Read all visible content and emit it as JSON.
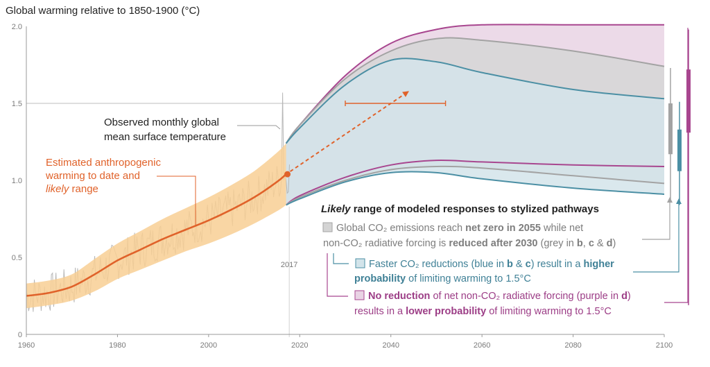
{
  "chart_data": {
    "type": "line",
    "title": "Global warming relative to 1850-1900 (°C)",
    "xlim": [
      1960,
      2100
    ],
    "ylim": [
      0,
      2.0
    ],
    "x_ticks": [
      "1960",
      "1980",
      "2000",
      "2020",
      "2040",
      "2060",
      "2080",
      "2100"
    ],
    "y_ticks": [
      "0",
      "0.5",
      "1.0",
      "1.5",
      "2.0"
    ],
    "grid": "horizontal line at 1.5",
    "marker_label": "2017",
    "observed_label": [
      "Observed monthly global",
      "mean surface temperature"
    ],
    "estimated_label": [
      "Estimated anthropogenic",
      "warming to date and"
    ],
    "estimated_label_italic": "likely",
    "estimated_label_tail": " range",
    "estimated_warming": {
      "x": [
        1960,
        1965,
        1970,
        1975,
        1980,
        1985,
        1990,
        1995,
        2000,
        2005,
        2010,
        2015,
        2017
      ],
      "y": [
        0.25,
        0.27,
        0.31,
        0.39,
        0.48,
        0.55,
        0.62,
        0.68,
        0.74,
        0.81,
        0.89,
        0.99,
        1.04
      ],
      "likely_range_low": [
        0.17,
        0.19,
        0.22,
        0.28,
        0.36,
        0.42,
        0.48,
        0.54,
        0.59,
        0.65,
        0.72,
        0.8,
        0.84
      ],
      "likely_range_high": [
        0.33,
        0.35,
        0.39,
        0.49,
        0.59,
        0.67,
        0.75,
        0.82,
        0.89,
        0.97,
        1.06,
        1.18,
        1.24
      ]
    },
    "observed_monthly": {
      "x_start": 1960,
      "x_end": 2017.9,
      "step_years": 0.25,
      "trend_y_at_1960": 0.25,
      "noise_amplitude": 0.13,
      "y_peak": 1.57,
      "peak_year": 2016.2
    },
    "projection_arrow": {
      "x_from": 2017,
      "y_from": 1.04,
      "x_to": 2044,
      "y_to": 1.58
    },
    "range_bar_1_5": {
      "y": 1.5,
      "x_from": 2030,
      "x_to": 2052
    },
    "pathways": [
      {
        "name": "purple",
        "color": "#a8468f",
        "fill": "#e9d3e4",
        "upper": {
          "x": [
            2017,
            2020,
            2030,
            2040,
            2050,
            2060,
            2080,
            2100
          ],
          "y": [
            1.24,
            1.36,
            1.68,
            1.89,
            1.98,
            2.01,
            2.01,
            2.01
          ]
        },
        "lower": {
          "x": [
            2017,
            2020,
            2030,
            2040,
            2050,
            2060,
            2080,
            2100
          ],
          "y": [
            0.84,
            0.9,
            1.02,
            1.1,
            1.13,
            1.12,
            1.1,
            1.09
          ]
        }
      },
      {
        "name": "grey",
        "color": "#a3a3a3",
        "fill": "#d6d6d6",
        "upper": {
          "x": [
            2017,
            2020,
            2030,
            2040,
            2050,
            2060,
            2080,
            2100
          ],
          "y": [
            1.24,
            1.36,
            1.66,
            1.84,
            1.92,
            1.91,
            1.84,
            1.74
          ]
        },
        "lower": {
          "x": [
            2017,
            2020,
            2030,
            2040,
            2050,
            2060,
            2080,
            2100
          ],
          "y": [
            0.84,
            0.89,
            1.0,
            1.07,
            1.09,
            1.08,
            1.03,
            0.98
          ]
        }
      },
      {
        "name": "blue",
        "color": "#4b8fa4",
        "fill": "#d3e4ea",
        "upper": {
          "x": [
            2017,
            2020,
            2030,
            2040,
            2050,
            2060,
            2080,
            2100
          ],
          "y": [
            1.24,
            1.34,
            1.62,
            1.78,
            1.77,
            1.7,
            1.59,
            1.53
          ]
        },
        "lower": {
          "x": [
            2017,
            2020,
            2030,
            2040,
            2050,
            2060,
            2080,
            2100
          ],
          "y": [
            0.84,
            0.88,
            0.99,
            1.05,
            1.05,
            1.01,
            0.95,
            0.91
          ]
        }
      }
    ],
    "side_bars": [
      {
        "name": "grey",
        "color": "#a3a3a3",
        "whisker": [
          0.87,
          1.73
        ],
        "box": [
          1.17,
          1.5
        ]
      },
      {
        "name": "blue",
        "color": "#4b8fa4",
        "whisker": [
          0.84,
          1.51
        ],
        "box": [
          1.06,
          1.33
        ]
      },
      {
        "name": "purple",
        "color": "#a8468f",
        "whisker": [
          0.19,
          1.98
        ],
        "box": [
          1.31,
          1.72
        ]
      }
    ],
    "legend": {
      "heading_italic": "Likely",
      "heading_rest": " range of modeled responses to stylized pathways",
      "grey": {
        "line1": [
          [
            "Global CO₂ emissions reach ",
            false
          ],
          [
            "net zero in 2055",
            true
          ],
          [
            " while net",
            false
          ]
        ],
        "line2": [
          [
            "non-CO₂ radiative forcing is ",
            false
          ],
          [
            "reduced after 2030",
            true
          ],
          [
            " (grey in ",
            false
          ],
          [
            "b",
            true
          ],
          [
            ", ",
            false
          ],
          [
            "c",
            true
          ],
          [
            " & ",
            false
          ],
          [
            "d",
            true
          ],
          [
            ")",
            false
          ]
        ]
      },
      "blue": {
        "line1": [
          [
            "Faster CO₂ reductions (blue in ",
            false
          ],
          [
            "b",
            true
          ],
          [
            " & ",
            false
          ],
          [
            "c",
            true
          ],
          [
            ") result in a ",
            false
          ],
          [
            "higher",
            true
          ]
        ],
        "line2": [
          [
            "probability",
            true
          ],
          [
            " of limiting warming to 1.5°C",
            false
          ]
        ]
      },
      "purple": {
        "line1": [
          [
            "No reduction",
            true
          ],
          [
            " of net non-CO₂ radiative forcing (purple in ",
            false
          ],
          [
            "d",
            true
          ],
          [
            ")",
            false
          ]
        ],
        "line2": [
          [
            "results in a ",
            false
          ],
          [
            "lower probability",
            true
          ],
          [
            " of limiting warming to 1.5°C",
            false
          ]
        ]
      }
    },
    "colors": {
      "orange": "#e0622a",
      "orange_band": "#f8cf94",
      "observed": "#b3b3b3",
      "axis_text": "#7a7a7a"
    }
  }
}
